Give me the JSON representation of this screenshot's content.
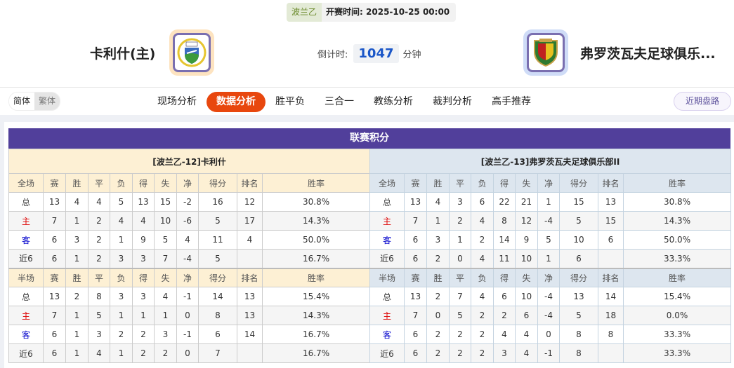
{
  "match": {
    "league": "波兰乙",
    "start_label": "开赛时间:",
    "start_time": "2025-10-25 00:00"
  },
  "home": {
    "name": "卡利什(主)",
    "logo_color": "#fde3c0"
  },
  "away": {
    "name": "弗罗茨瓦夫足球俱乐...",
    "logo_color": "#cfdcf7"
  },
  "countdown": {
    "label": "倒计时:",
    "value": "1047",
    "unit": "分钟"
  },
  "lang": {
    "simplified": "简体",
    "traditional": "繁体"
  },
  "tabs": [
    {
      "label": "现场分析"
    },
    {
      "label": "数据分析",
      "active": true
    },
    {
      "label": "胜平负"
    },
    {
      "label": "三合一"
    },
    {
      "label": "教练分析"
    },
    {
      "label": "裁判分析"
    },
    {
      "label": "高手推荐"
    }
  ],
  "recent_button": "近期盘路",
  "section_title": "联赛积分",
  "colors": {
    "accent": "#e8470e",
    "title_bar": "#513f9b",
    "home_red": "#dd0000",
    "away_blue": "#0000cc"
  },
  "standings": [
    {
      "team": "[波兰乙-12]卡利什",
      "full_header": [
        "全场",
        "赛",
        "胜",
        "平",
        "负",
        "得",
        "失",
        "净",
        "得分",
        "排名",
        "胜率"
      ],
      "full_rows": [
        [
          "总",
          "13",
          "4",
          "4",
          "5",
          "13",
          "15",
          "-2",
          "16",
          "12",
          "30.8%"
        ],
        [
          "主",
          "7",
          "1",
          "2",
          "4",
          "4",
          "10",
          "-6",
          "5",
          "17",
          "14.3%"
        ],
        [
          "客",
          "6",
          "3",
          "2",
          "1",
          "9",
          "5",
          "4",
          "11",
          "4",
          "50.0%"
        ],
        [
          "近6",
          "6",
          "1",
          "2",
          "3",
          "3",
          "7",
          "-4",
          "5",
          "",
          "16.7%"
        ]
      ],
      "half_header": [
        "半场",
        "赛",
        "胜",
        "平",
        "负",
        "得",
        "失",
        "净",
        "得分",
        "排名",
        "胜率"
      ],
      "half_rows": [
        [
          "总",
          "13",
          "2",
          "8",
          "3",
          "3",
          "4",
          "-1",
          "14",
          "13",
          "15.4%"
        ],
        [
          "主",
          "7",
          "1",
          "5",
          "1",
          "1",
          "1",
          "0",
          "8",
          "13",
          "14.3%"
        ],
        [
          "客",
          "6",
          "1",
          "3",
          "2",
          "2",
          "3",
          "-1",
          "6",
          "14",
          "16.7%"
        ],
        [
          "近6",
          "6",
          "1",
          "4",
          "1",
          "2",
          "2",
          "0",
          "7",
          "",
          "16.7%"
        ]
      ]
    },
    {
      "team": "[波兰乙-13]弗罗茨瓦夫足球俱乐部II",
      "full_header": [
        "全场",
        "赛",
        "胜",
        "平",
        "负",
        "得",
        "失",
        "净",
        "得分",
        "排名",
        "胜率"
      ],
      "full_rows": [
        [
          "总",
          "13",
          "4",
          "3",
          "6",
          "22",
          "21",
          "1",
          "15",
          "13",
          "30.8%"
        ],
        [
          "主",
          "7",
          "1",
          "2",
          "4",
          "8",
          "12",
          "-4",
          "5",
          "15",
          "14.3%"
        ],
        [
          "客",
          "6",
          "3",
          "1",
          "2",
          "14",
          "9",
          "5",
          "10",
          "6",
          "50.0%"
        ],
        [
          "近6",
          "6",
          "2",
          "0",
          "4",
          "11",
          "10",
          "1",
          "6",
          "",
          "33.3%"
        ]
      ],
      "half_header": [
        "半场",
        "赛",
        "胜",
        "平",
        "负",
        "得",
        "失",
        "净",
        "得分",
        "排名",
        "胜率"
      ],
      "half_rows": [
        [
          "总",
          "13",
          "2",
          "7",
          "4",
          "6",
          "10",
          "-4",
          "13",
          "14",
          "15.4%"
        ],
        [
          "主",
          "7",
          "0",
          "5",
          "2",
          "2",
          "6",
          "-4",
          "5",
          "18",
          "0.0%"
        ],
        [
          "客",
          "6",
          "2",
          "2",
          "2",
          "4",
          "4",
          "0",
          "8",
          "8",
          "33.3%"
        ],
        [
          "近6",
          "6",
          "2",
          "2",
          "2",
          "3",
          "4",
          "-1",
          "8",
          "",
          "33.3%"
        ]
      ]
    }
  ]
}
